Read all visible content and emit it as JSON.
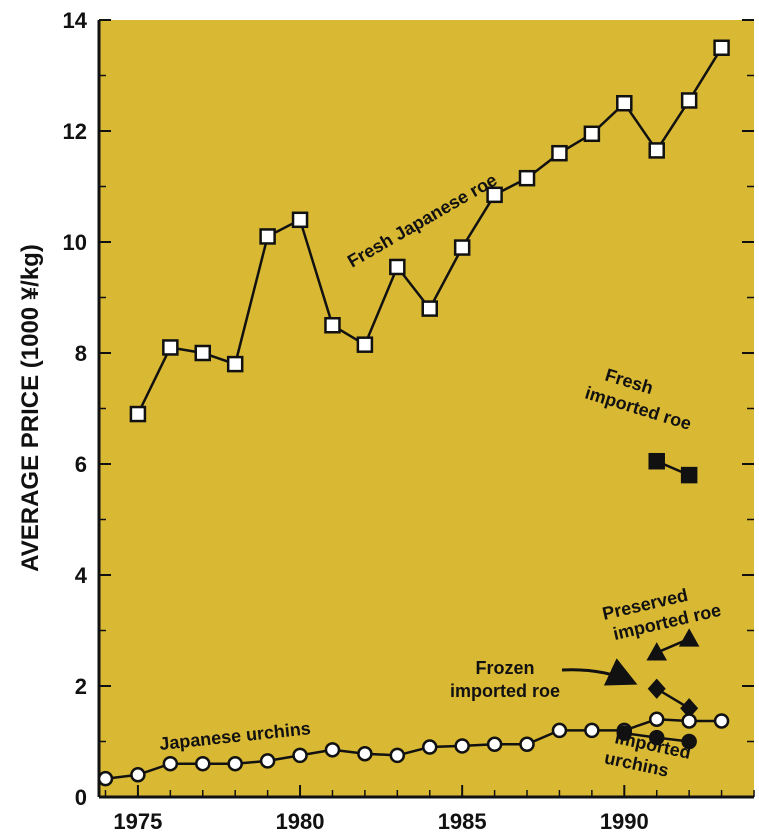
{
  "chart_data": {
    "type": "line",
    "title": "",
    "xlabel": "",
    "ylabel": "AVERAGE PRICE (1000 ¥/kg)",
    "xlim": [
      1973.8,
      1994.0
    ],
    "ylim": [
      0,
      14
    ],
    "x_ticks": [
      1975,
      1980,
      1985,
      1990
    ],
    "y_ticks": [
      0,
      2,
      4,
      6,
      8,
      10,
      12,
      14
    ],
    "grid": false,
    "background_color": "#d9b834",
    "series": [
      {
        "name": "Fresh Japanese roe",
        "marker": "open-square",
        "color": "#111111",
        "x": [
          1975,
          1976,
          1977,
          1978,
          1979,
          1980,
          1981,
          1982,
          1983,
          1984,
          1985,
          1986,
          1987,
          1988,
          1989,
          1990,
          1991,
          1992,
          1993
        ],
        "y": [
          6.9,
          8.1,
          8.0,
          7.8,
          10.1,
          10.4,
          8.5,
          8.15,
          9.55,
          8.8,
          9.9,
          10.85,
          11.15,
          11.6,
          11.95,
          12.5,
          11.65,
          12.55,
          13.5
        ]
      },
      {
        "name": "Fresh imported roe",
        "marker": "filled-square",
        "color": "#111111",
        "x": [
          1991,
          1992
        ],
        "y": [
          6.05,
          5.8
        ]
      },
      {
        "name": "Preserved imported roe",
        "marker": "filled-triangle",
        "color": "#111111",
        "x": [
          1991,
          1992
        ],
        "y": [
          2.6,
          2.85
        ]
      },
      {
        "name": "Frozen imported roe",
        "marker": "filled-diamond",
        "color": "#111111",
        "x": [
          1991,
          1992
        ],
        "y": [
          1.95,
          1.6
        ]
      },
      {
        "name": "Japanese urchins",
        "marker": "open-circle",
        "color": "#111111",
        "x": [
          1974,
          1975,
          1976,
          1977,
          1978,
          1979,
          1980,
          1981,
          1982,
          1983,
          1984,
          1985,
          1986,
          1987,
          1988,
          1989,
          1990,
          1991,
          1992,
          1993
        ],
        "y": [
          0.33,
          0.4,
          0.6,
          0.6,
          0.6,
          0.65,
          0.75,
          0.85,
          0.78,
          0.75,
          0.9,
          0.92,
          0.95,
          0.95,
          1.2,
          1.2,
          1.2,
          1.4,
          1.37,
          1.37
        ]
      },
      {
        "name": "Imported urchins",
        "marker": "filled-circle",
        "color": "#111111",
        "x": [
          1990,
          1991,
          1992
        ],
        "y": [
          1.15,
          1.07,
          1.0
        ]
      }
    ],
    "annotations": [
      {
        "text": "Fresh Japanese roe"
      },
      {
        "text_lines": [
          "Fresh",
          "imported roe"
        ]
      },
      {
        "text_lines": [
          "Preserved",
          "imported roe"
        ]
      },
      {
        "text_lines": [
          "Frozen",
          "imported roe"
        ]
      },
      {
        "text": "Japanese urchins"
      },
      {
        "text_lines": [
          "Imported",
          "urchins"
        ]
      }
    ]
  }
}
